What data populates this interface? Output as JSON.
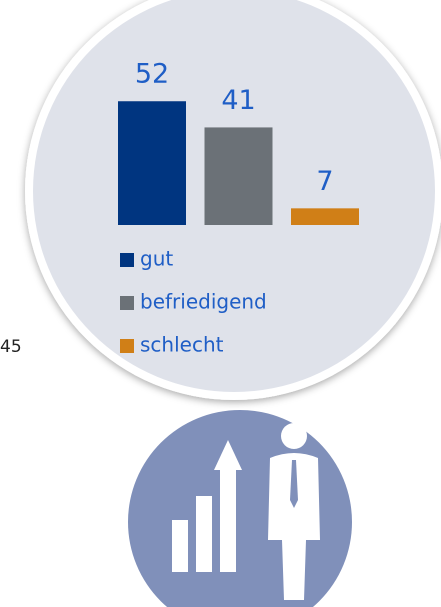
{
  "chart_data": {
    "type": "bar",
    "categories": [
      "gut",
      "befriedigend",
      "schlecht"
    ],
    "values": [
      52,
      41,
      7
    ],
    "colors": [
      "#003580",
      "#6b7177",
      "#d07f17"
    ],
    "side_label": "45"
  }
}
